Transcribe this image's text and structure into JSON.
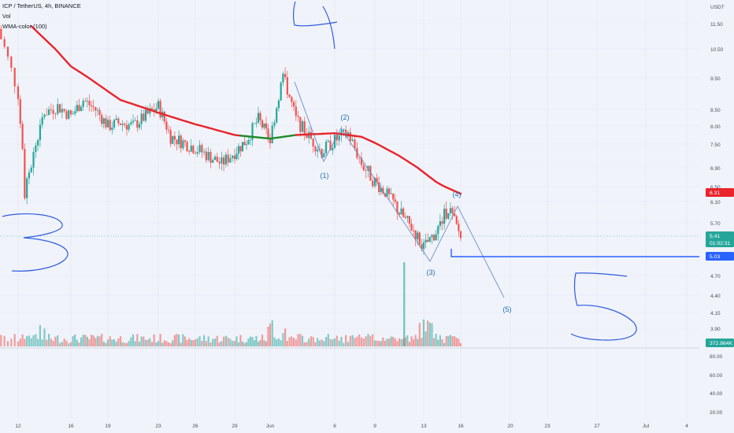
{
  "header": {
    "symbol": "ICP / TetherUS, 4h, BINANCE",
    "vol": "Vol",
    "wma": "WMA-color (100)"
  },
  "price_axis": {
    "unit": "USDT",
    "ticks": [
      "11.50",
      "10.50",
      "9.50",
      "8.50",
      "8.00",
      "7.50",
      "6.90",
      "6.50",
      "6.10",
      "5.70",
      "4.70",
      "4.40",
      "4.15",
      "3.90"
    ],
    "badges": {
      "wma": {
        "value": "6.31",
        "color": "#e8242c"
      },
      "last": {
        "value": "5.41",
        "countdown": "01:02:31",
        "color": "#26a69a"
      },
      "support": {
        "value": "5.03",
        "color": "#2962ff"
      },
      "volume": {
        "value": "372.864K",
        "color": "#26a69a"
      }
    }
  },
  "lower_axis": {
    "ticks": [
      "80.00",
      "60.00",
      "40.00",
      "20.00"
    ]
  },
  "time_axis": {
    "ticks": [
      "12",
      "16",
      "19",
      "23",
      "26",
      "29",
      "Jun",
      "6",
      "9",
      "13",
      "16",
      "20",
      "23",
      "27",
      "Jul",
      "4"
    ]
  },
  "waves": {
    "labels": [
      "(1)",
      "(2)",
      "(3)",
      "(4)",
      "(5)"
    ]
  },
  "colors": {
    "up": "#26a69a",
    "down": "#ef5350",
    "wma": "#e8242c",
    "wma_green": "#1b8a2a",
    "pen": "#2962ff",
    "wave": "#1f6fb5"
  },
  "chart_data": {
    "type": "candlestick",
    "title": "ICP / TetherUS, 4h, BINANCE",
    "ylabel": "USDT",
    "ylim": [
      3.7,
      12.5
    ],
    "x_range": [
      "May 11",
      "Jul 5"
    ],
    "close_anchors": [
      {
        "date": "May 11",
        "price": 11.3
      },
      {
        "date": "May 12",
        "price": 9.0
      },
      {
        "date": "May 12.5",
        "price": 6.3
      },
      {
        "date": "May 13",
        "price": 7.0
      },
      {
        "date": "May 14",
        "price": 8.4
      },
      {
        "date": "May 15",
        "price": 8.6
      },
      {
        "date": "May 16",
        "price": 8.3
      },
      {
        "date": "May 17",
        "price": 8.8
      },
      {
        "date": "May 18",
        "price": 8.5
      },
      {
        "date": "May 19",
        "price": 8.0
      },
      {
        "date": "May 20",
        "price": 8.1
      },
      {
        "date": "May 21",
        "price": 8.0
      },
      {
        "date": "May 23",
        "price": 8.6
      },
      {
        "date": "May 24",
        "price": 7.7
      },
      {
        "date": "May 26",
        "price": 7.4
      },
      {
        "date": "May 28",
        "price": 7.0
      },
      {
        "date": "May 29",
        "price": 7.3
      },
      {
        "date": "May 30",
        "price": 7.6
      },
      {
        "date": "May 31",
        "price": 8.2
      },
      {
        "date": "Jun 1",
        "price": 7.6
      },
      {
        "date": "Jun 2",
        "price": 9.6
      },
      {
        "date": "Jun 3",
        "price": 8.2
      },
      {
        "date": "Jun 4",
        "price": 7.7
      },
      {
        "date": "Jun 5",
        "price": 7.3
      },
      {
        "date": "Jun 6",
        "price": 7.6
      },
      {
        "date": "Jun 7",
        "price": 7.8
      },
      {
        "date": "Jun 8",
        "price": 7.0
      },
      {
        "date": "Jun 9",
        "price": 6.6
      },
      {
        "date": "Jun 10",
        "price": 6.3
      },
      {
        "date": "Jun 11",
        "price": 5.9
      },
      {
        "date": "Jun 12",
        "price": 5.6
      },
      {
        "date": "Jun 13",
        "price": 5.2
      },
      {
        "date": "Jun 14",
        "price": 5.5
      },
      {
        "date": "Jun 15",
        "price": 6.0
      },
      {
        "date": "Jun 16",
        "price": 5.41
      }
    ],
    "wma_anchors": [
      {
        "date": "May 13",
        "price": 11.4
      },
      {
        "date": "May 16",
        "price": 9.9
      },
      {
        "date": "May 20",
        "price": 8.8
      },
      {
        "date": "May 23",
        "price": 8.4
      },
      {
        "date": "May 26",
        "price": 8.05
      },
      {
        "date": "May 29",
        "price": 7.75
      },
      {
        "date": "Jun 1",
        "price": 7.65
      },
      {
        "date": "Jun 3",
        "price": 7.75
      },
      {
        "date": "Jun 6",
        "price": 7.8
      },
      {
        "date": "Jun 8",
        "price": 7.7
      },
      {
        "date": "Jun 11",
        "price": 7.2
      },
      {
        "date": "Jun 14",
        "price": 6.6
      },
      {
        "date": "Jun 16",
        "price": 6.31
      }
    ],
    "wma_green_range": [
      "May 29.5",
      "Jun 3"
    ],
    "support_level": 5.03,
    "last_price": 5.41,
    "elliott_waves": [
      {
        "label": "(1)",
        "date": "Jun 5",
        "price": 7.0
      },
      {
        "label": "(2)",
        "date": "Jun 6.5",
        "price": 8.0
      },
      {
        "label": "(3)",
        "date": "Jun 13",
        "price": 4.9
      },
      {
        "label": "(4)",
        "date": "Jun 15.5",
        "price": 6.0
      },
      {
        "label": "(5)",
        "date": "Jun 19",
        "price": 4.3
      }
    ]
  }
}
